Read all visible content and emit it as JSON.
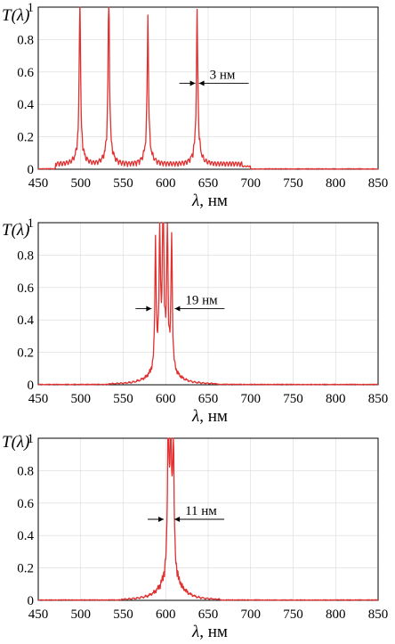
{
  "chart_data": [
    {
      "type": "line",
      "ylabel": "T(λ)",
      "xlabel": "λ, нм",
      "xlim": [
        450,
        850
      ],
      "ylim": [
        0,
        1
      ],
      "x_ticks": [
        450,
        500,
        550,
        600,
        650,
        700,
        750,
        800,
        850
      ],
      "y_ticks": [
        0,
        0.2,
        0.4,
        0.6,
        0.8,
        1
      ],
      "grid": true,
      "series_color": "#e03030",
      "peaks": [
        {
          "center": 499,
          "height": 0.89,
          "width": 1.3
        },
        {
          "center": 533,
          "height": 1.0,
          "width": 1.3
        },
        {
          "center": 579,
          "height": 0.76,
          "width": 1.3
        },
        {
          "center": 637,
          "height": 0.78,
          "width": 1.4
        }
      ],
      "annotation": {
        "text": "3 нм",
        "x": 637
      }
    },
    {
      "type": "line",
      "ylabel": "T(λ)",
      "xlabel": "λ, нм",
      "xlim": [
        450,
        850
      ],
      "ylim": [
        0,
        1
      ],
      "x_ticks": [
        450,
        500,
        550,
        600,
        650,
        700,
        750,
        800,
        850
      ],
      "y_ticks": [
        0,
        0.2,
        0.4,
        0.6,
        0.8,
        1
      ],
      "grid": true,
      "series_color": "#e03030",
      "peaks": [
        {
          "center": 588,
          "height": 0.77,
          "width": 1.3
        },
        {
          "center": 593,
          "height": 0.82,
          "width": 1.3
        },
        {
          "center": 597,
          "height": 0.99,
          "width": 1.3
        },
        {
          "center": 602,
          "height": 0.8,
          "width": 1.3
        },
        {
          "center": 607,
          "height": 0.82,
          "width": 1.3
        }
      ],
      "annotation": {
        "text": "19 нм",
        "x": 597
      }
    },
    {
      "type": "line",
      "ylabel": "T(λ)",
      "xlabel": "λ, нм",
      "xlim": [
        450,
        850
      ],
      "ylim": [
        0,
        1
      ],
      "x_ticks": [
        450,
        500,
        550,
        600,
        650,
        700,
        750,
        800,
        850
      ],
      "y_ticks": [
        0,
        0.2,
        0.4,
        0.6,
        0.8,
        1
      ],
      "grid": true,
      "series_color": "#e03030",
      "peaks": [
        {
          "center": 603,
          "height": 0.98,
          "width": 1.4
        },
        {
          "center": 606,
          "height": 0.9,
          "width": 1.4
        },
        {
          "center": 609,
          "height": 0.8,
          "width": 1.4
        }
      ],
      "annotation": {
        "text": "11 нм",
        "x": 604
      }
    }
  ]
}
